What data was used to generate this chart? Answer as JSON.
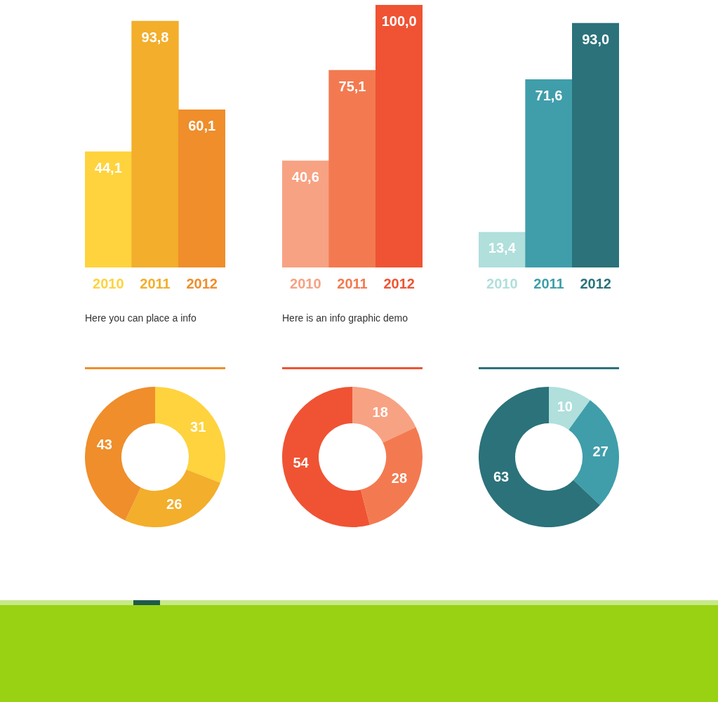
{
  "chart_data": [
    {
      "type": "bar",
      "categories": [
        "2010",
        "2011",
        "2012"
      ],
      "values": [
        44.1,
        93.8,
        60.1
      ],
      "value_labels": [
        "44,1",
        "93,8",
        "60,1"
      ],
      "colors": [
        "#fed33d",
        "#f3ae2b",
        "#ef8e2b"
      ],
      "annotations": [
        "Here you can place a info"
      ]
    },
    {
      "type": "bar",
      "categories": [
        "2010",
        "2011",
        "2012"
      ],
      "values": [
        40.6,
        75.1,
        100.0
      ],
      "value_labels": [
        "40,6",
        "75,1",
        "100,0"
      ],
      "colors": [
        "#f7a283",
        "#f37a50",
        "#ef5333"
      ],
      "annotations": [
        "Here is an info graphic demo"
      ]
    },
    {
      "type": "bar",
      "categories": [
        "2010",
        "2011",
        "2012"
      ],
      "values": [
        13.4,
        71.6,
        93.0
      ],
      "value_labels": [
        "13,4",
        "71,6",
        "93,0"
      ],
      "colors": [
        "#b0dfdc",
        "#3f9eaa",
        "#2b727b"
      ]
    },
    {
      "type": "donut",
      "categories": [
        null,
        null,
        null
      ],
      "values": [
        31,
        26,
        43
      ],
      "colors": [
        "#fed33d",
        "#f3ae2b",
        "#ef8e2b"
      ],
      "data_labels": true
    },
    {
      "type": "donut",
      "categories": [
        null,
        null,
        null
      ],
      "values": [
        18,
        28,
        54
      ],
      "colors": [
        "#f7a283",
        "#f37a50",
        "#ef5333"
      ],
      "data_labels": true
    },
    {
      "type": "donut",
      "categories": [
        null,
        null,
        null
      ],
      "values": [
        10,
        27,
        63
      ],
      "colors": [
        "#b0dfdc",
        "#3f9eaa",
        "#2b727b"
      ],
      "data_labels": true
    }
  ]
}
